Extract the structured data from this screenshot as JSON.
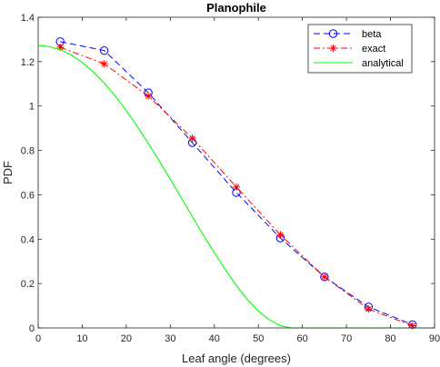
{
  "chart_data": {
    "type": "line",
    "title": "Planophile",
    "xlabel": "Leaf angle (degrees)",
    "ylabel": "PDF",
    "xlim": [
      0,
      90
    ],
    "ylim": [
      0,
      1.4
    ],
    "xticks": [
      0,
      10,
      20,
      30,
      40,
      50,
      60,
      70,
      80,
      90
    ],
    "xtick_labels": [
      "0",
      "10",
      "20",
      "30",
      "40",
      "50",
      "60",
      "70",
      "80",
      "90"
    ],
    "yticks": [
      0,
      0.2,
      0.4,
      0.6,
      0.8,
      1,
      1.2,
      1.4
    ],
    "ytick_labels": [
      "0",
      "0.2",
      "0.4",
      "0.6",
      "0.8",
      "1",
      "1.2",
      "1.4"
    ],
    "grid": false,
    "legend_position": "top-right",
    "series": [
      {
        "name": "beta",
        "color": "#0000ff",
        "line_style": "dashed",
        "marker": "circle",
        "x": [
          5,
          15,
          25,
          35,
          45,
          55,
          65,
          75,
          85
        ],
        "y": [
          1.29,
          1.25,
          1.06,
          0.835,
          0.61,
          0.405,
          0.23,
          0.095,
          0.015
        ]
      },
      {
        "name": "exact",
        "color": "#ff0000",
        "line_style": "dashdot",
        "marker": "asterisk",
        "x": [
          5,
          15,
          25,
          35,
          45,
          55,
          65,
          75,
          85
        ],
        "y": [
          1.265,
          1.19,
          1.045,
          0.855,
          0.635,
          0.42,
          0.23,
          0.085,
          0.01
        ]
      },
      {
        "name": "analytical",
        "color": "#00ff00",
        "line_style": "solid",
        "marker": "none",
        "x": [
          0,
          2.5,
          5,
          7.5,
          10,
          12.5,
          15,
          17.5,
          20,
          22.5,
          25,
          27.5,
          30,
          32.5,
          35,
          37.5,
          40,
          42.5,
          45,
          47.5,
          50,
          52.5,
          55,
          57.5,
          60,
          62.5,
          65,
          67.5,
          70,
          72.5,
          75,
          77.5,
          80,
          82.5,
          85,
          87.5,
          90
        ],
        "y": [
          1.273,
          1.268,
          1.254,
          1.23,
          1.196,
          1.154,
          1.103,
          1.045,
          0.979,
          0.908,
          0.832,
          0.752,
          0.67,
          0.586,
          0.502,
          0.419,
          0.339,
          0.262,
          0.191,
          0.128,
          0.076,
          0.036,
          0.01,
          0.0,
          0.0,
          0.0,
          0.0,
          0.0,
          0.0,
          0.0,
          0.0,
          0.0,
          0.0,
          0.0,
          0.0,
          0.0,
          0.0
        ]
      }
    ]
  }
}
